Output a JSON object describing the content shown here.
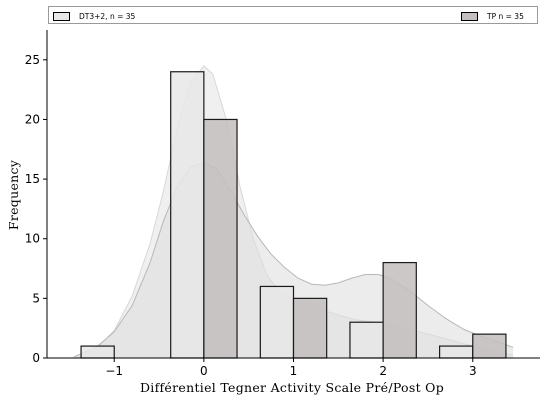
{
  "legend": {
    "items": [
      {
        "label": "DT3+2, n = 35",
        "color": "#e8e8e8"
      },
      {
        "label": "TP  n = 35",
        "color": "#c4bebe"
      }
    ]
  },
  "chart_data": {
    "type": "bar",
    "x": [
      -1,
      0,
      1,
      2,
      3
    ],
    "xticks": [
      "−1",
      "0",
      "1",
      "2",
      "3"
    ],
    "xlim": [
      -1.75,
      3.75
    ],
    "ylim": [
      0,
      27.5
    ],
    "yticks": [
      0,
      5,
      10,
      15,
      20,
      25
    ],
    "xlabel": "Différentiel Tegner Activity Scale Pré/Post Op",
    "ylabel": "Frequency",
    "grid": false,
    "legend_position": "top",
    "series": [
      {
        "name": "DT3+2, n = 35",
        "values": [
          1,
          24,
          6,
          3,
          1
        ],
        "color": "#e8e8e8",
        "kde": [
          [
            -1.45,
            0.1
          ],
          [
            -1.2,
            0.8
          ],
          [
            -1.0,
            2.3
          ],
          [
            -0.8,
            5.2
          ],
          [
            -0.6,
            9.6
          ],
          [
            -0.45,
            14.0
          ],
          [
            -0.3,
            19.2
          ],
          [
            -0.15,
            23.0
          ],
          [
            0.0,
            24.5
          ],
          [
            0.1,
            23.8
          ],
          [
            0.25,
            20.0
          ],
          [
            0.4,
            14.5
          ],
          [
            0.55,
            10.0
          ],
          [
            0.7,
            7.0
          ],
          [
            0.85,
            5.5
          ],
          [
            1.0,
            5.0
          ],
          [
            1.15,
            4.6
          ],
          [
            1.3,
            4.1
          ],
          [
            1.5,
            3.6
          ],
          [
            1.7,
            3.2
          ],
          [
            1.9,
            3.0
          ],
          [
            2.1,
            2.8
          ],
          [
            2.3,
            2.4
          ],
          [
            2.5,
            2.0
          ],
          [
            2.7,
            1.6
          ],
          [
            2.9,
            1.2
          ],
          [
            3.1,
            0.8
          ],
          [
            3.3,
            0.45
          ],
          [
            3.45,
            0.25
          ]
        ]
      },
      {
        "name": "TP  n = 35",
        "values": [
          0,
          20,
          5,
          8,
          2
        ],
        "color": "#c4bebe",
        "kde": [
          [
            -1.45,
            0.1
          ],
          [
            -1.2,
            0.9
          ],
          [
            -1.0,
            2.2
          ],
          [
            -0.8,
            4.4
          ],
          [
            -0.6,
            8.0
          ],
          [
            -0.45,
            11.5
          ],
          [
            -0.3,
            14.3
          ],
          [
            -0.15,
            16.0
          ],
          [
            0.0,
            16.4
          ],
          [
            0.15,
            15.8
          ],
          [
            0.3,
            14.0
          ],
          [
            0.45,
            12.0
          ],
          [
            0.6,
            10.2
          ],
          [
            0.75,
            8.7
          ],
          [
            0.9,
            7.6
          ],
          [
            1.05,
            6.7
          ],
          [
            1.2,
            6.2
          ],
          [
            1.35,
            6.1
          ],
          [
            1.5,
            6.3
          ],
          [
            1.65,
            6.7
          ],
          [
            1.8,
            7.0
          ],
          [
            1.95,
            7.0
          ],
          [
            2.1,
            6.6
          ],
          [
            2.3,
            5.6
          ],
          [
            2.5,
            4.4
          ],
          [
            2.7,
            3.3
          ],
          [
            2.9,
            2.4
          ],
          [
            3.1,
            1.8
          ],
          [
            3.3,
            1.3
          ],
          [
            3.45,
            0.9
          ]
        ]
      }
    ]
  }
}
